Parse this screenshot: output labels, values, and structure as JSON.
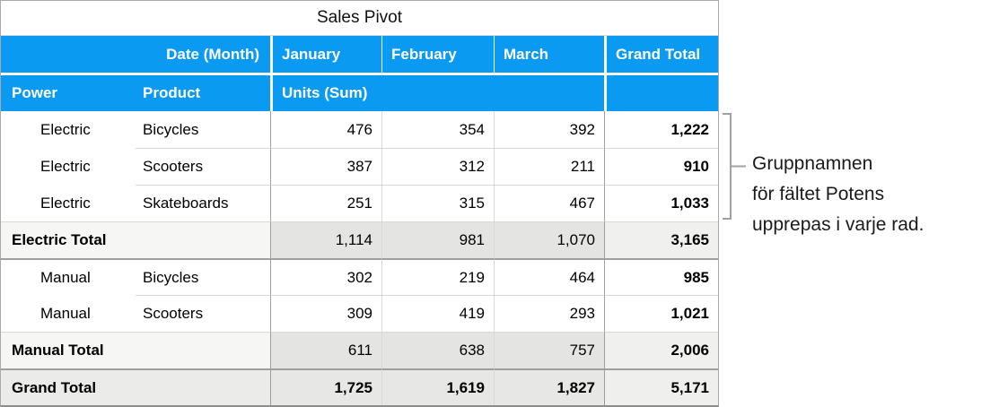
{
  "title": "Sales Pivot",
  "colors": {
    "header_blue": "#0b9af2",
    "outer_border": "#a9a9a7",
    "outer_border_dark": "#8c8c8a",
    "line_light": "#d8d8d6",
    "line_strong": "#9e9e9c",
    "subtotal_label_bg": "#f6f6f4",
    "subtotal_month_bg": "#e4e4e2",
    "subtotal_grand_bg": "#f0f0ee",
    "grand_label_bg": "#ebebe9",
    "grand_month_bg": "#e7e7e5",
    "grand_grand_bg": "#efefed",
    "bracket": "#a1a19f",
    "annotation_text": "#1a1a1a"
  },
  "header": {
    "row1": {
      "date_label": "Date (Month)",
      "months": [
        "January",
        "February",
        "March"
      ],
      "grand_total": "Grand Total"
    },
    "row2": {
      "power": "Power",
      "product": "Product",
      "units": "Units (Sum)"
    }
  },
  "icons": {
    "disclosure": "▼"
  },
  "rows": [
    {
      "type": "data",
      "disclosure": true,
      "power": "Electric",
      "product": "Bicycles",
      "values": [
        "476",
        "354",
        "392"
      ],
      "total": "1,222"
    },
    {
      "type": "data",
      "disclosure": false,
      "power": "Electric",
      "product": "Scooters",
      "values": [
        "387",
        "312",
        "211"
      ],
      "total": "910"
    },
    {
      "type": "data",
      "disclosure": false,
      "power": "Electric",
      "product": "Skateboards",
      "values": [
        "251",
        "315",
        "467"
      ],
      "total": "1,033"
    },
    {
      "type": "subtotal",
      "label": "Electric Total",
      "values": [
        "1,114",
        "981",
        "1,070"
      ],
      "total": "3,165"
    },
    {
      "type": "data",
      "disclosure": true,
      "power": "Manual",
      "product": "Bicycles",
      "values": [
        "302",
        "219",
        "464"
      ],
      "total": "985"
    },
    {
      "type": "data",
      "disclosure": false,
      "power": "Manual",
      "product": "Scooters",
      "values": [
        "309",
        "419",
        "293"
      ],
      "total": "1,021"
    },
    {
      "type": "subtotal",
      "label": "Manual Total",
      "values": [
        "611",
        "638",
        "757"
      ],
      "total": "2,006"
    },
    {
      "type": "grandtotal",
      "label": "Grand Total",
      "values": [
        "1,725",
        "1,619",
        "1,827"
      ],
      "total": "5,171"
    }
  ],
  "annotation": {
    "lines": [
      "Gruppnamnen",
      "för fältet Potens",
      "upprepas i varje rad."
    ]
  }
}
